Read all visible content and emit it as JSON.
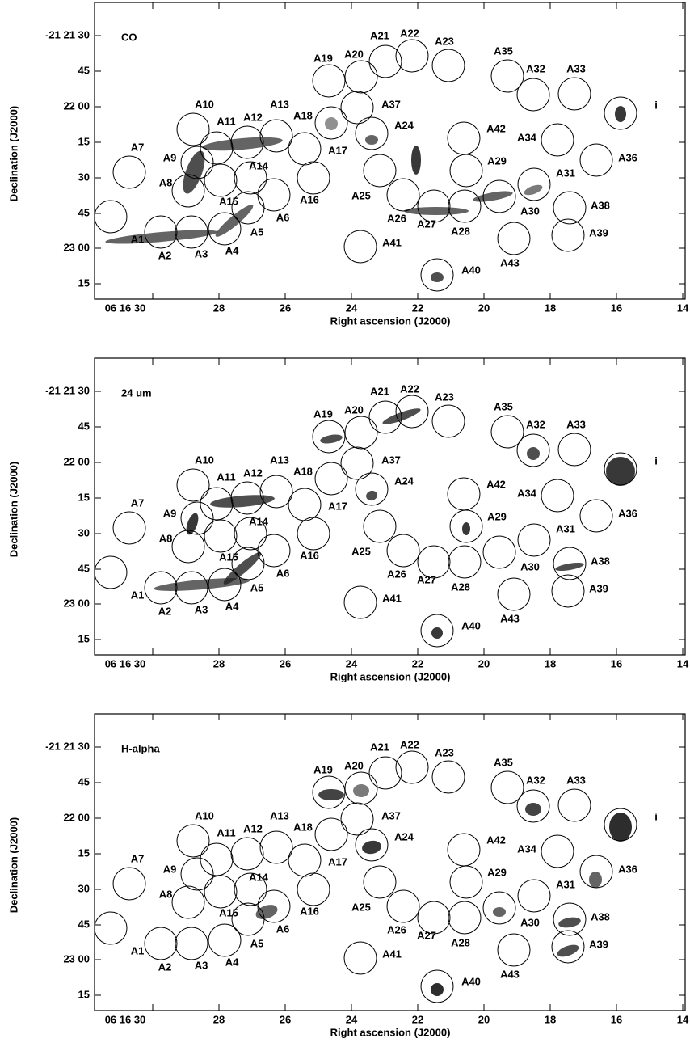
{
  "panels": [
    {
      "label": "CO"
    },
    {
      "label": "24 um"
    },
    {
      "label": "H-alpha"
    }
  ],
  "x_axis_label": "Right ascension (J2000)",
  "y_axis_label": "Declination (J2000)",
  "x_tick_labels": [
    "06 16 30",
    "28",
    "26",
    "24",
    "22",
    "20",
    "18",
    "16",
    "14"
  ],
  "y_tick_labels": [
    "-21 21 30",
    "45",
    "22 00",
    "15",
    "30",
    "45",
    "23 00",
    "15"
  ],
  "regions": [
    "A1",
    "A2",
    "A3",
    "A4",
    "A5",
    "A6",
    "A7",
    "A8",
    "A9",
    "A10",
    "A11",
    "A12",
    "A13",
    "A14",
    "A15",
    "A16",
    "A17",
    "A18",
    "A19",
    "A20",
    "A21",
    "A22",
    "A23",
    "A24",
    "A25",
    "A26",
    "A27",
    "A28",
    "A29",
    "A30",
    "A31",
    "A32",
    "A33",
    "A34",
    "A35",
    "A36",
    "A37",
    "A38",
    "A39",
    "A40",
    "A41",
    "A42",
    "A43",
    "i"
  ]
}
